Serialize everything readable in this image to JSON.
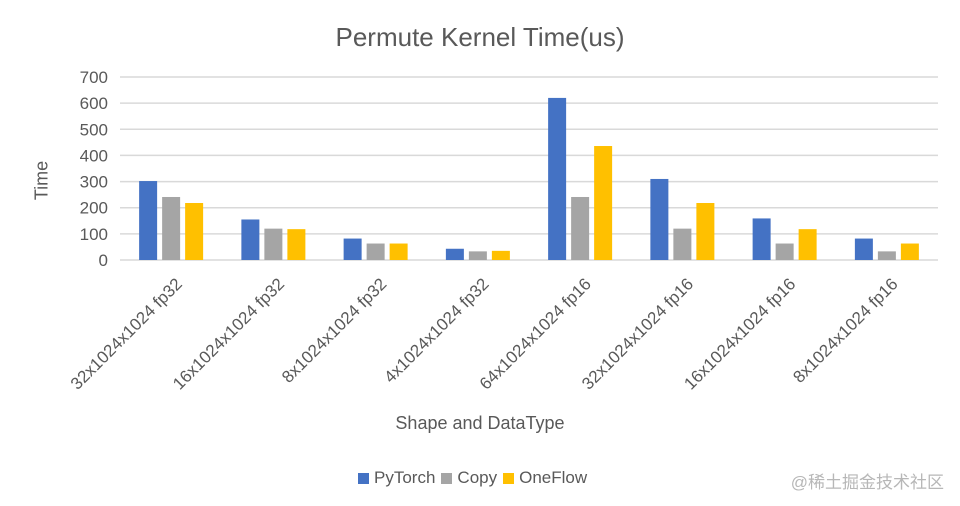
{
  "chart_data": {
    "type": "bar",
    "title": "Permute Kernel Time(us)",
    "xlabel": "Shape and DataType",
    "ylabel": "Time",
    "ylim": [
      0,
      700
    ],
    "yticks": [
      0,
      100,
      200,
      300,
      400,
      500,
      600,
      700
    ],
    "grid": true,
    "legend_position": "bottom",
    "categories": [
      "32x1024x1024 fp32",
      "16x1024x1024 fp32",
      "8x1024x1024 fp32",
      "4x1024x1024 fp32",
      "64x1024x1024 fp16",
      "32x1024x1024 fp16",
      "16x1024x1024 fp16",
      "8x1024x1024 fp16"
    ],
    "series": [
      {
        "name": "PyTorch",
        "color": "#4472C4",
        "values": [
          302,
          155,
          82,
          43,
          620,
          310,
          159,
          82
        ]
      },
      {
        "name": "Copy",
        "color": "#A5A5A5",
        "values": [
          241,
          120,
          63,
          33,
          241,
          120,
          63,
          33
        ]
      },
      {
        "name": "OneFlow",
        "color": "#FFC000",
        "values": [
          218,
          118,
          63,
          35,
          436,
          218,
          118,
          63
        ]
      }
    ]
  },
  "watermark": "@稀土掘金技术社区"
}
